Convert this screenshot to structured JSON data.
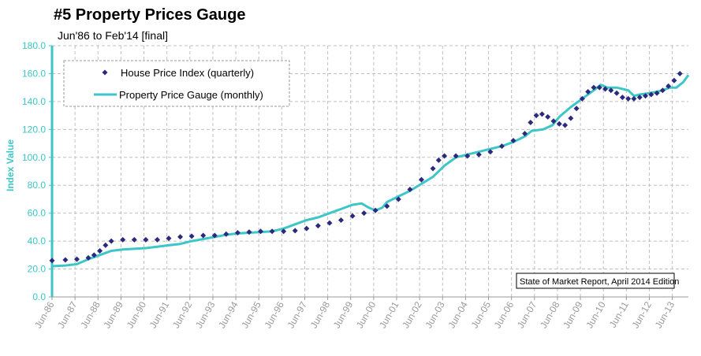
{
  "header": {
    "title": "#5 Property Prices Gauge",
    "subtitle": "Jun'86 to Feb'14 [final]"
  },
  "colors": {
    "gauge_line": "#3cc6c8",
    "index_marker": "#2b2a7e",
    "y_axis": "#3cc6c8",
    "grid": "#c0c0c0",
    "x_tick_text": "#9a9a9a"
  },
  "chart_data": {
    "type": "line",
    "ylabel": "Index Value",
    "ylim": [
      0,
      180
    ],
    "xlim": [
      1986.42,
      2014.12
    ],
    "y_ticks": [
      "0.0",
      "20.0",
      "40.0",
      "60.0",
      "80.0",
      "100.0",
      "120.0",
      "140.0",
      "160.0",
      "180.0"
    ],
    "x_tick_labels": [
      "Jun-86",
      "Jun-87",
      "Jun-88",
      "Jun-89",
      "Jun-90",
      "Jun-91",
      "Jun-92",
      "Jun-93",
      "Jun-94",
      "Jun-95",
      "Jun-96",
      "Jun-97",
      "Jun-98",
      "Jun-99",
      "Jun-00",
      "Jun-01",
      "Jun-02",
      "Jun-03",
      "Jun-04",
      "Jun-05",
      "Jun-06",
      "Jun-07",
      "Jun-08",
      "Jun-09",
      "Jun-10",
      "Jun-11",
      "Jun-12",
      "Jun-13"
    ],
    "grid": true,
    "legend_position": "top-left",
    "annotation": "State of Market Report, April 2014 Edition",
    "series": [
      {
        "name": "House Price Index (quarterly)",
        "style": "markers",
        "points": [
          [
            1986.42,
            26
          ],
          [
            1987.0,
            26.5
          ],
          [
            1987.5,
            27
          ],
          [
            1988.0,
            28
          ],
          [
            1988.25,
            30
          ],
          [
            1988.5,
            33
          ],
          [
            1988.75,
            37
          ],
          [
            1989.0,
            40
          ],
          [
            1989.5,
            41
          ],
          [
            1990.0,
            41
          ],
          [
            1990.5,
            41
          ],
          [
            1991.0,
            41
          ],
          [
            1991.5,
            42
          ],
          [
            1992.0,
            43
          ],
          [
            1992.5,
            43.5
          ],
          [
            1993.0,
            44
          ],
          [
            1993.5,
            44
          ],
          [
            1994.0,
            45
          ],
          [
            1994.5,
            46
          ],
          [
            1995.0,
            46.5
          ],
          [
            1995.5,
            47
          ],
          [
            1996.0,
            47
          ],
          [
            1996.5,
            47
          ],
          [
            1997.0,
            47.5
          ],
          [
            1997.5,
            49
          ],
          [
            1998.0,
            51
          ],
          [
            1998.5,
            53
          ],
          [
            1999.0,
            55
          ],
          [
            1999.5,
            58
          ],
          [
            2000.0,
            60
          ],
          [
            2000.5,
            62
          ],
          [
            2001.0,
            65
          ],
          [
            2001.5,
            70
          ],
          [
            2002.0,
            77
          ],
          [
            2002.5,
            84
          ],
          [
            2003.0,
            92
          ],
          [
            2003.25,
            98
          ],
          [
            2003.5,
            101
          ],
          [
            2004.0,
            101
          ],
          [
            2004.5,
            101
          ],
          [
            2005.0,
            102
          ],
          [
            2005.5,
            104
          ],
          [
            2006.0,
            108
          ],
          [
            2006.5,
            112
          ],
          [
            2007.0,
            117
          ],
          [
            2007.25,
            125
          ],
          [
            2007.5,
            130
          ],
          [
            2007.75,
            131
          ],
          [
            2008.0,
            129
          ],
          [
            2008.25,
            126
          ],
          [
            2008.5,
            124
          ],
          [
            2008.75,
            123
          ],
          [
            2009.0,
            128
          ],
          [
            2009.25,
            135
          ],
          [
            2009.5,
            142
          ],
          [
            2009.75,
            147
          ],
          [
            2010.0,
            150
          ],
          [
            2010.25,
            150
          ],
          [
            2010.5,
            149
          ],
          [
            2010.75,
            148
          ],
          [
            2011.0,
            146
          ],
          [
            2011.25,
            143
          ],
          [
            2011.5,
            142
          ],
          [
            2011.75,
            142
          ],
          [
            2012.0,
            143
          ],
          [
            2012.25,
            144
          ],
          [
            2012.5,
            145
          ],
          [
            2012.75,
            146
          ],
          [
            2013.0,
            148
          ],
          [
            2013.25,
            151
          ],
          [
            2013.5,
            155
          ],
          [
            2013.75,
            160
          ]
        ]
      },
      {
        "name": "Property Price Gauge (monthly)",
        "style": "line",
        "points": [
          [
            1986.42,
            22
          ],
          [
            1987.0,
            22.5
          ],
          [
            1987.5,
            23.5
          ],
          [
            1988.0,
            27
          ],
          [
            1988.5,
            30
          ],
          [
            1989.0,
            33
          ],
          [
            1989.5,
            34
          ],
          [
            1990.0,
            34.5
          ],
          [
            1990.5,
            35
          ],
          [
            1991.0,
            36
          ],
          [
            1991.5,
            37
          ],
          [
            1992.0,
            38
          ],
          [
            1992.5,
            40
          ],
          [
            1993.0,
            41.5
          ],
          [
            1993.5,
            43
          ],
          [
            1994.0,
            44.5
          ],
          [
            1994.5,
            45.5
          ],
          [
            1995.0,
            46
          ],
          [
            1995.5,
            46.5
          ],
          [
            1996.0,
            47
          ],
          [
            1996.5,
            49
          ],
          [
            1997.0,
            52
          ],
          [
            1997.5,
            55
          ],
          [
            1998.0,
            57
          ],
          [
            1998.5,
            60
          ],
          [
            1999.0,
            63
          ],
          [
            1999.5,
            66
          ],
          [
            1999.9,
            67
          ],
          [
            2000.2,
            64
          ],
          [
            2000.5,
            62
          ],
          [
            2000.8,
            64
          ],
          [
            2001.0,
            68
          ],
          [
            2001.5,
            72
          ],
          [
            2002.0,
            76
          ],
          [
            2002.5,
            81
          ],
          [
            2003.0,
            86
          ],
          [
            2003.5,
            94
          ],
          [
            2004.0,
            100
          ],
          [
            2004.5,
            102
          ],
          [
            2005.0,
            104
          ],
          [
            2005.5,
            106
          ],
          [
            2006.0,
            108
          ],
          [
            2006.5,
            111
          ],
          [
            2007.0,
            115
          ],
          [
            2007.3,
            119
          ],
          [
            2007.8,
            120
          ],
          [
            2008.2,
            123
          ],
          [
            2008.5,
            129
          ],
          [
            2009.0,
            136
          ],
          [
            2009.5,
            142
          ],
          [
            2010.0,
            148
          ],
          [
            2010.3,
            152
          ],
          [
            2010.6,
            150
          ],
          [
            2011.0,
            150
          ],
          [
            2011.5,
            148
          ],
          [
            2011.75,
            144
          ],
          [
            2012.0,
            145
          ],
          [
            2012.4,
            146
          ],
          [
            2012.75,
            147
          ],
          [
            2013.0,
            148
          ],
          [
            2013.3,
            150
          ],
          [
            2013.6,
            150
          ],
          [
            2013.9,
            154
          ],
          [
            2014.12,
            159
          ]
        ]
      }
    ]
  }
}
